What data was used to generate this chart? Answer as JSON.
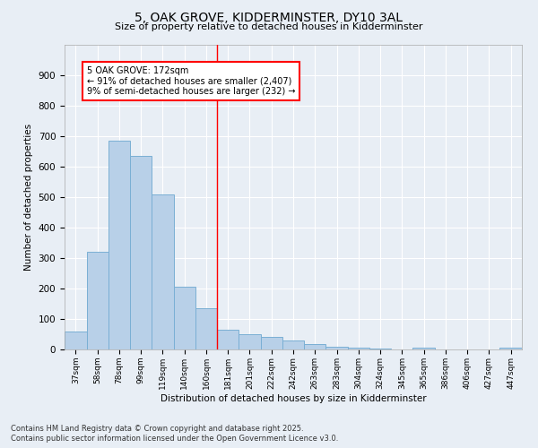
{
  "title": "5, OAK GROVE, KIDDERMINSTER, DY10 3AL",
  "subtitle": "Size of property relative to detached houses in Kidderminster",
  "xlabel": "Distribution of detached houses by size in Kidderminster",
  "ylabel": "Number of detached properties",
  "bar_color": "#b8d0e8",
  "bar_edge_color": "#7aafd4",
  "background_color": "#e8eef5",
  "grid_color": "#ffffff",
  "vline_x_index": 7,
  "vline_color": "red",
  "annotation_text": "5 OAK GROVE: 172sqm\n← 91% of detached houses are smaller (2,407)\n9% of semi-detached houses are larger (232) →",
  "annotation_box_color": "white",
  "annotation_box_edge": "red",
  "footer_line1": "Contains HM Land Registry data © Crown copyright and database right 2025.",
  "footer_line2": "Contains public sector information licensed under the Open Government Licence v3.0.",
  "categories": [
    "37sqm",
    "58sqm",
    "78sqm",
    "99sqm",
    "119sqm",
    "140sqm",
    "160sqm",
    "181sqm",
    "201sqm",
    "222sqm",
    "242sqm",
    "263sqm",
    "283sqm",
    "304sqm",
    "324sqm",
    "345sqm",
    "365sqm",
    "386sqm",
    "406sqm",
    "427sqm",
    "447sqm"
  ],
  "bin_edges": [
    37,
    58,
    78,
    99,
    119,
    140,
    160,
    181,
    201,
    222,
    242,
    263,
    283,
    304,
    324,
    345,
    365,
    386,
    406,
    427,
    447,
    468
  ],
  "values": [
    60,
    320,
    685,
    635,
    510,
    205,
    135,
    65,
    50,
    40,
    30,
    18,
    10,
    5,
    2,
    0,
    5,
    0,
    0,
    0,
    5
  ],
  "ylim": [
    0,
    1000
  ],
  "yticks": [
    0,
    100,
    200,
    300,
    400,
    500,
    600,
    700,
    800,
    900
  ],
  "figsize": [
    6.0,
    5.0
  ],
  "dpi": 100
}
